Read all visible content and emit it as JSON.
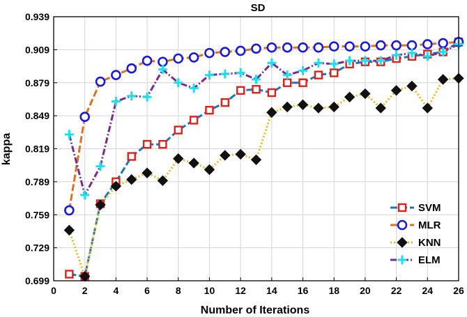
{
  "chart_data": {
    "type": "line",
    "title": "SD",
    "xlabel": "Number of Iterations",
    "ylabel": "kappa",
    "xlim": [
      0,
      26
    ],
    "ylim": [
      0.699,
      0.939
    ],
    "xticks": [
      0,
      2,
      4,
      6,
      8,
      10,
      12,
      14,
      16,
      18,
      20,
      22,
      24,
      26
    ],
    "yticks": [
      0.699,
      0.729,
      0.759,
      0.789,
      0.819,
      0.849,
      0.879,
      0.909,
      0.939
    ],
    "ytick_labels": [
      "0.699",
      "0.729",
      "0.759",
      "0.789",
      "0.819",
      "0.849",
      "0.879",
      "0.909",
      "0.939"
    ],
    "grid": true,
    "legend_position": "bottom-right",
    "x": [
      1,
      2,
      3,
      4,
      5,
      6,
      7,
      8,
      9,
      10,
      11,
      12,
      13,
      14,
      15,
      16,
      17,
      18,
      19,
      20,
      21,
      22,
      23,
      24,
      25,
      26
    ],
    "series": [
      {
        "name": "SVM",
        "line_color": "#1e73be",
        "marker": "square",
        "marker_color": "#e0201b",
        "values": [
          0.705,
          0.703,
          0.769,
          0.789,
          0.812,
          0.823,
          0.823,
          0.836,
          0.845,
          0.854,
          0.861,
          0.872,
          0.873,
          0.87,
          0.879,
          0.879,
          0.886,
          0.888,
          0.896,
          0.898,
          0.898,
          0.901,
          0.903,
          0.905,
          0.907,
          0.916
        ]
      },
      {
        "name": "MLR",
        "line_color": "#e0701b",
        "marker": "circle",
        "marker_color": "#1a1adc",
        "values": [
          0.763,
          0.848,
          0.88,
          0.886,
          0.892,
          0.899,
          0.898,
          0.901,
          0.902,
          0.906,
          0.907,
          0.908,
          0.91,
          0.911,
          0.911,
          0.911,
          0.911,
          0.912,
          0.912,
          0.912,
          0.913,
          0.913,
          0.913,
          0.914,
          0.915,
          0.916
        ]
      },
      {
        "name": "KNN",
        "line_color": "#e8b820",
        "marker": "diamond",
        "marker_color": "#111111",
        "values": [
          0.745,
          0.703,
          0.768,
          0.785,
          0.791,
          0.797,
          0.79,
          0.81,
          0.806,
          0.8,
          0.813,
          0.814,
          0.809,
          0.852,
          0.857,
          0.859,
          0.856,
          0.857,
          0.866,
          0.869,
          0.856,
          0.872,
          0.876,
          0.856,
          0.882,
          0.883
        ]
      },
      {
        "name": "ELM",
        "line_color": "#7a2a8c",
        "marker": "plus",
        "marker_color": "#19dff0",
        "values": [
          0.832,
          0.777,
          0.803,
          0.862,
          0.867,
          0.866,
          0.891,
          0.879,
          0.874,
          0.886,
          0.887,
          0.888,
          0.882,
          0.897,
          0.886,
          0.89,
          0.897,
          0.896,
          0.899,
          0.899,
          0.899,
          0.904,
          0.906,
          0.903,
          0.907,
          0.914
        ]
      }
    ]
  }
}
